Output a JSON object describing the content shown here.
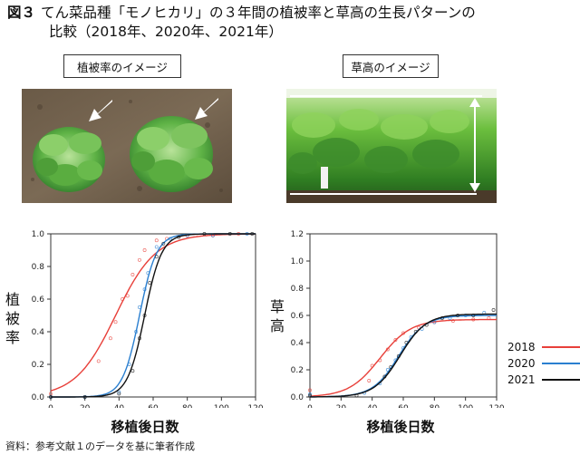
{
  "title": {
    "figure_no": "図３",
    "line1": "てん菜品種「モノヒカリ」の３年間の植被率と草高の生長パターンの",
    "line2": "比較（2018年、2020年、2021年）"
  },
  "panels": {
    "left_label": "植被率のイメージ",
    "right_label": "草高のイメージ"
  },
  "colors": {
    "2018": "#e8403a",
    "2020": "#2a7fd0",
    "2021": "#111111",
    "points": "#888888"
  },
  "chart_data": [
    {
      "type": "scatter",
      "xlabel": "移植後日数",
      "ylabel": "植被率",
      "xlim": [
        0,
        120
      ],
      "ylim": [
        0,
        1.0
      ],
      "xticks": [
        0,
        20,
        40,
        60,
        80,
        100,
        120
      ],
      "yticks": [
        "0.0",
        "0.2",
        "0.4",
        "0.6",
        "0.8",
        "1.0"
      ],
      "series": [
        {
          "name": "2018",
          "color": "#e8403a",
          "curve": {
            "K": 1.0,
            "r": 0.085,
            "x0": 38,
            "base": 0.0
          },
          "points": [
            [
              0,
              0.02
            ],
            [
              28,
              0.22
            ],
            [
              35,
              0.36
            ],
            [
              38,
              0.46
            ],
            [
              42,
              0.6
            ],
            [
              45,
              0.62
            ],
            [
              48,
              0.75
            ],
            [
              52,
              0.84
            ],
            [
              55,
              0.9
            ],
            [
              62,
              0.96
            ],
            [
              68,
              0.97
            ],
            [
              80,
              0.99
            ],
            [
              95,
              0.99
            ],
            [
              110,
              1.0
            ]
          ]
        },
        {
          "name": "2020",
          "color": "#2a7fd0",
          "curve": {
            "K": 1.0,
            "r": 0.2,
            "x0": 52,
            "base": 0.0
          },
          "points": [
            [
              0,
              0.0
            ],
            [
              20,
              0.0
            ],
            [
              40,
              0.03
            ],
            [
              46,
              0.2
            ],
            [
              50,
              0.4
            ],
            [
              52,
              0.55
            ],
            [
              55,
              0.66
            ],
            [
              57,
              0.76
            ],
            [
              62,
              0.92
            ],
            [
              70,
              0.97
            ],
            [
              80,
              0.99
            ],
            [
              95,
              0.99
            ],
            [
              115,
              1.0
            ]
          ]
        },
        {
          "name": "2021",
          "color": "#111111",
          "curve": {
            "K": 1.0,
            "r": 0.2,
            "x0": 55,
            "base": 0.0
          },
          "points": [
            [
              0,
              0.0
            ],
            [
              20,
              0.0
            ],
            [
              40,
              0.02
            ],
            [
              48,
              0.16
            ],
            [
              52,
              0.36
            ],
            [
              55,
              0.5
            ],
            [
              58,
              0.7
            ],
            [
              62,
              0.86
            ],
            [
              66,
              0.94
            ],
            [
              75,
              0.98
            ],
            [
              90,
              1.0
            ],
            [
              105,
              1.0
            ],
            [
              118,
              1.0
            ]
          ]
        }
      ]
    },
    {
      "type": "scatter",
      "xlabel": "移植後日数",
      "ylabel": "草高",
      "xlim": [
        0,
        120
      ],
      "ylim": [
        0,
        1.2
      ],
      "xticks": [
        0,
        20,
        40,
        60,
        80,
        100,
        120
      ],
      "yticks": [
        "0.0",
        "0.2",
        "0.4",
        "0.6",
        "0.8",
        "1.0",
        "1.2"
      ],
      "series": [
        {
          "name": "2018",
          "color": "#e8403a",
          "curve": {
            "K": 0.57,
            "r": 0.1,
            "x0": 45,
            "base": 0.0
          },
          "points": [
            [
              0,
              0.05
            ],
            [
              38,
              0.12
            ],
            [
              40,
              0.23
            ],
            [
              45,
              0.27
            ],
            [
              50,
              0.35
            ],
            [
              55,
              0.42
            ],
            [
              60,
              0.47
            ],
            [
              70,
              0.51
            ],
            [
              80,
              0.55
            ],
            [
              92,
              0.56
            ],
            [
              105,
              0.57
            ],
            [
              115,
              0.58
            ]
          ]
        },
        {
          "name": "2020",
          "color": "#2a7fd0",
          "curve": {
            "K": 0.6,
            "r": 0.12,
            "x0": 57,
            "base": 0.0
          },
          "points": [
            [
              0,
              0.02
            ],
            [
              35,
              0.03
            ],
            [
              45,
              0.1
            ],
            [
              50,
              0.2
            ],
            [
              55,
              0.27
            ],
            [
              60,
              0.36
            ],
            [
              65,
              0.44
            ],
            [
              72,
              0.5
            ],
            [
              80,
              0.55
            ],
            [
              90,
              0.58
            ],
            [
              100,
              0.6
            ],
            [
              112,
              0.62
            ]
          ]
        },
        {
          "name": "2021",
          "color": "#111111",
          "curve": {
            "K": 0.61,
            "r": 0.12,
            "x0": 58,
            "base": 0.0
          },
          "points": [
            [
              0,
              0.01
            ],
            [
              30,
              0.01
            ],
            [
              48,
              0.15
            ],
            [
              52,
              0.22
            ],
            [
              57,
              0.3
            ],
            [
              62,
              0.4
            ],
            [
              68,
              0.48
            ],
            [
              75,
              0.53
            ],
            [
              85,
              0.58
            ],
            [
              95,
              0.6
            ],
            [
              105,
              0.6
            ],
            [
              118,
              0.64
            ]
          ]
        }
      ]
    }
  ],
  "legend": [
    {
      "label": "2018",
      "color": "#e8403a"
    },
    {
      "label": "2020",
      "color": "#2a7fd0"
    },
    {
      "label": "2021",
      "color": "#111111"
    }
  ],
  "source": "資料：参考文献１のデータを基に筆者作成"
}
